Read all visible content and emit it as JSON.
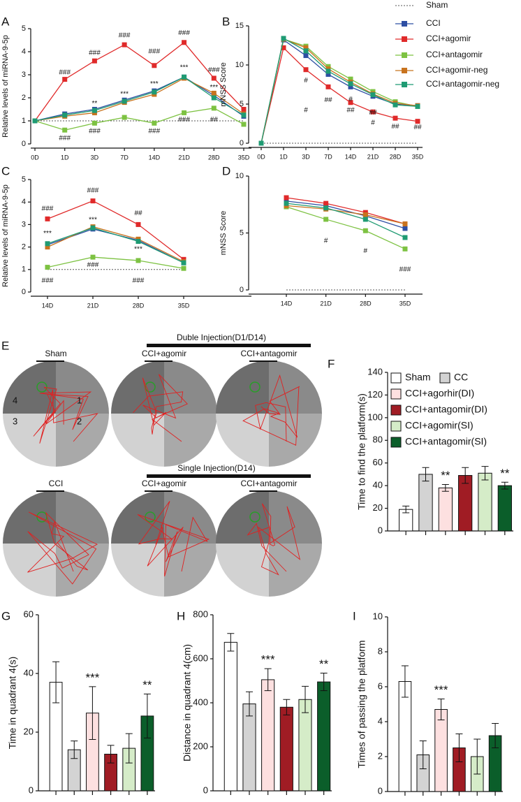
{
  "chart_data": [
    {
      "panel": "A",
      "type": "line",
      "ylabel": "Relative levels of miRNA-9-5p",
      "categories": [
        "0D",
        "1D",
        "3D",
        "7D",
        "14D",
        "21D",
        "28D",
        "35D"
      ],
      "ylim": [
        0,
        5
      ],
      "yticks": [
        0,
        1,
        2,
        3,
        4,
        5
      ],
      "series": [
        {
          "name": "Sham",
          "color": "#555555",
          "dash": true,
          "values": [
            1,
            1,
            1,
            1,
            1,
            1,
            1,
            1
          ]
        },
        {
          "name": "CCI",
          "color": "#2e4fa3",
          "values": [
            1,
            1.3,
            1.5,
            1.9,
            2.3,
            2.9,
            2.1,
            1.2
          ]
        },
        {
          "name": "CCI+agomir",
          "color": "#e02a2a",
          "values": [
            1,
            2.8,
            3.6,
            4.3,
            3.4,
            4.4,
            2.85,
            1.5
          ]
        },
        {
          "name": "CCI+antagomir",
          "color": "#7dc242",
          "values": [
            1,
            0.6,
            0.9,
            1.15,
            0.9,
            1.35,
            1.55,
            0.85
          ]
        },
        {
          "name": "CCI+agomir-neg",
          "color": "#c8731e",
          "values": [
            1,
            1.2,
            1.35,
            1.8,
            2.15,
            2.85,
            2.2,
            1.3
          ]
        },
        {
          "name": "CCI+antagomir-neg",
          "color": "#1f9b73",
          "values": [
            1,
            1.25,
            1.45,
            1.85,
            2.25,
            2.9,
            2.0,
            1.25
          ]
        }
      ],
      "annotations": [
        {
          "text": "###",
          "x": "1D",
          "y": 3.1
        },
        {
          "text": "###",
          "x": "3D",
          "y": 3.95
        },
        {
          "text": "###",
          "x": "7D",
          "y": 4.7
        },
        {
          "text": "###",
          "x": "14D",
          "y": 4.0
        },
        {
          "text": "###",
          "x": "21D",
          "y": 4.8
        },
        {
          "text": "###",
          "x": "28D",
          "y": 3.2
        },
        {
          "text": "**",
          "x": "3D",
          "y": 1.75
        },
        {
          "text": "***",
          "x": "7D",
          "y": 2.15
        },
        {
          "text": "***",
          "x": "14D",
          "y": 2.6
        },
        {
          "text": "***",
          "x": "21D",
          "y": 3.3
        },
        {
          "text": "***",
          "x": "28D",
          "y": 2.45
        },
        {
          "text": "###",
          "x": "1D",
          "y": 0.25
        },
        {
          "text": "###",
          "x": "3D",
          "y": 0.55
        },
        {
          "text": "###",
          "x": "14D",
          "y": 0.55
        },
        {
          "text": "###",
          "x": "21D",
          "y": 1.05
        },
        {
          "text": "##",
          "x": "28D",
          "y": 1.05
        }
      ]
    },
    {
      "panel": "B",
      "type": "line",
      "ylabel": "mNSS Score",
      "categories": [
        "0D",
        "1D",
        "3D",
        "7D",
        "14D",
        "21D",
        "28D",
        "35D"
      ],
      "ylim": [
        0,
        15
      ],
      "yticks": [
        0,
        5,
        10,
        15
      ],
      "series": [
        {
          "color": "#555555",
          "dash": true,
          "values": [
            0,
            0,
            0,
            0,
            0,
            0,
            0,
            0
          ]
        },
        {
          "color": "#2e4fa3",
          "values": [
            0,
            13.2,
            11.2,
            8.8,
            7.2,
            6.0,
            5.0,
            4.8
          ]
        },
        {
          "color": "#e02a2a",
          "values": [
            0,
            12.2,
            9.4,
            7.2,
            5.2,
            4.0,
            3.2,
            2.8
          ]
        },
        {
          "color": "#7dc242",
          "values": [
            0,
            13.3,
            12.4,
            9.8,
            8.2,
            6.6,
            5.3,
            4.7
          ]
        },
        {
          "color": "#c8731e",
          "values": [
            0,
            13.3,
            12.2,
            9.5,
            7.8,
            6.3,
            5.1,
            4.8
          ]
        },
        {
          "color": "#1f9b73",
          "values": [
            0,
            13.4,
            11.8,
            9.2,
            7.6,
            6.2,
            4.9,
            4.7
          ]
        }
      ],
      "annotations": [
        {
          "text": "#",
          "x": "3D",
          "y": 8.0
        },
        {
          "text": "#",
          "x": "3D",
          "y": 4.2
        },
        {
          "text": "##",
          "x": "7D",
          "y": 5.5
        },
        {
          "text": "#",
          "x": "14D",
          "y": 5.6
        },
        {
          "text": "##",
          "x": "14D",
          "y": 4.2
        },
        {
          "text": "##",
          "x": "21D",
          "y": 3.9
        },
        {
          "text": "#",
          "x": "21D",
          "y": 2.6
        },
        {
          "text": "##",
          "x": "28D",
          "y": 2.1
        },
        {
          "text": "##",
          "x": "35D",
          "y": 2.0
        }
      ]
    },
    {
      "panel": "C",
      "type": "line",
      "ylabel": "Relative levels of miRNA-9-5p",
      "categories": [
        "14D",
        "21D",
        "28D",
        "35D"
      ],
      "ylim": [
        0,
        5
      ],
      "yticks": [
        0,
        1,
        2,
        3,
        4,
        5
      ],
      "series": [
        {
          "color": "#555555",
          "dash": true,
          "values": [
            1,
            1,
            1,
            1
          ]
        },
        {
          "color": "#2e4fa3",
          "values": [
            2.1,
            2.8,
            2.3,
            1.3
          ]
        },
        {
          "color": "#e02a2a",
          "values": [
            3.25,
            4.05,
            3.0,
            1.45
          ]
        },
        {
          "color": "#7dc242",
          "values": [
            1.1,
            1.55,
            1.4,
            1.05
          ]
        },
        {
          "color": "#c8731e",
          "values": [
            2.0,
            2.9,
            2.35,
            1.35
          ]
        },
        {
          "color": "#1f9b73",
          "values": [
            2.15,
            2.85,
            2.25,
            1.3
          ]
        }
      ],
      "annotations": [
        {
          "text": "###",
          "x": "14D",
          "y": 3.7
        },
        {
          "text": "***",
          "x": "14D",
          "y": 2.6
        },
        {
          "text": "###",
          "x": "14D",
          "y": 0.5
        },
        {
          "text": "###",
          "x": "21D",
          "y": 4.5
        },
        {
          "text": "***",
          "x": "21D",
          "y": 3.2
        },
        {
          "text": "###",
          "x": "21D",
          "y": 1.2
        },
        {
          "text": "##",
          "x": "28D",
          "y": 3.5
        },
        {
          "text": "***",
          "x": "28D",
          "y": 1.9
        },
        {
          "text": "###",
          "x": "28D",
          "y": 0.5
        }
      ]
    },
    {
      "panel": "D",
      "type": "line",
      "ylabel": "mNSS Score",
      "categories": [
        "14D",
        "21D",
        "28D",
        "35D"
      ],
      "ylim": [
        0,
        10
      ],
      "yticks": [
        0,
        5,
        10
      ],
      "series": [
        {
          "color": "#555555",
          "dash": true,
          "values": [
            0,
            0,
            0,
            0
          ]
        },
        {
          "color": "#2e4fa3",
          "values": [
            7.8,
            7.4,
            6.5,
            5.4
          ]
        },
        {
          "color": "#e02a2a",
          "values": [
            8.1,
            7.6,
            6.8,
            5.8
          ]
        },
        {
          "color": "#7dc242",
          "values": [
            7.3,
            6.2,
            5.2,
            3.6
          ]
        },
        {
          "color": "#c8731e",
          "values": [
            7.4,
            7.1,
            6.6,
            5.8
          ]
        },
        {
          "color": "#1f9b73",
          "values": [
            7.6,
            7.2,
            6.2,
            4.6
          ]
        }
      ],
      "annotations": [
        {
          "text": "#",
          "x": "21D",
          "y": 4.3
        },
        {
          "text": "#",
          "x": "28D",
          "y": 3.4
        },
        {
          "text": "###",
          "x": "35D",
          "y": 1.8
        }
      ]
    },
    {
      "panel": "F",
      "type": "bar",
      "ylabel": "Time to find the platform(s)",
      "ylim": [
        0,
        140
      ],
      "yticks": [
        0,
        20,
        40,
        60,
        80,
        100,
        120,
        140
      ],
      "values": [
        19,
        50,
        38,
        49,
        51,
        40
      ],
      "errors": [
        3,
        6,
        3,
        7,
        6,
        3
      ],
      "colors": [
        "#ffffff",
        "#d3d3d3",
        "#fde0e0",
        "#a01c24",
        "#d5ecc8",
        "#0b5e2a"
      ],
      "significance": [
        null,
        null,
        "**",
        null,
        null,
        "**"
      ],
      "legend": [
        "Sham",
        "CC",
        "CCI+agorhir(DI)",
        "CCI+antagomir(DI)",
        "CCI+agomir(SI)",
        "CCI+antagomir(SI)"
      ]
    },
    {
      "panel": "G",
      "type": "bar",
      "ylabel": "Time in quadrant 4(s)",
      "ylim": [
        0,
        60
      ],
      "yticks": [
        0,
        20,
        40,
        60
      ],
      "values": [
        37,
        14,
        26.5,
        12.5,
        14.5,
        25.5
      ],
      "errors": [
        7,
        3,
        9,
        3,
        5,
        7.5
      ],
      "colors": [
        "#ffffff",
        "#d3d3d3",
        "#fde0e0",
        "#a01c24",
        "#d5ecc8",
        "#0b5e2a"
      ],
      "significance": [
        null,
        null,
        "***",
        null,
        null,
        "**"
      ]
    },
    {
      "panel": "H",
      "type": "bar",
      "ylabel": "Distance in quadrant 4(cm)",
      "ylim": [
        0,
        800
      ],
      "yticks": [
        0,
        200,
        400,
        600,
        800
      ],
      "values": [
        675,
        395,
        505,
        380,
        415,
        495
      ],
      "errors": [
        40,
        55,
        50,
        35,
        60,
        40
      ],
      "colors": [
        "#ffffff",
        "#d3d3d3",
        "#fde0e0",
        "#a01c24",
        "#d5ecc8",
        "#0b5e2a"
      ],
      "significance": [
        null,
        null,
        "***",
        null,
        null,
        "**"
      ]
    },
    {
      "panel": "I",
      "type": "bar",
      "ylabel": "Times of passing the platform",
      "ylim": [
        0,
        10
      ],
      "yticks": [
        0,
        2,
        4,
        6,
        8,
        10
      ],
      "values": [
        6.3,
        2.1,
        4.7,
        2.5,
        2.0,
        3.2
      ],
      "errors": [
        0.9,
        0.8,
        0.6,
        0.8,
        1,
        0.7
      ],
      "colors": [
        "#ffffff",
        "#d3d3d3",
        "#fde0e0",
        "#a01c24",
        "#d5ecc8",
        "#0b5e2a"
      ],
      "significance": [
        null,
        null,
        "***",
        null,
        null,
        null
      ]
    }
  ],
  "maze": {
    "panel": "E",
    "double_title": "Duble Injection(D1/D14)",
    "single_title": "Single Injection(D14)",
    "labels": [
      "Sham",
      "CCI+agomir",
      "CCI+antagomir",
      "CCI",
      "CCI+agomir",
      "CCI+antagomir"
    ],
    "quadrants": [
      "4",
      "1",
      "3",
      "2"
    ]
  }
}
